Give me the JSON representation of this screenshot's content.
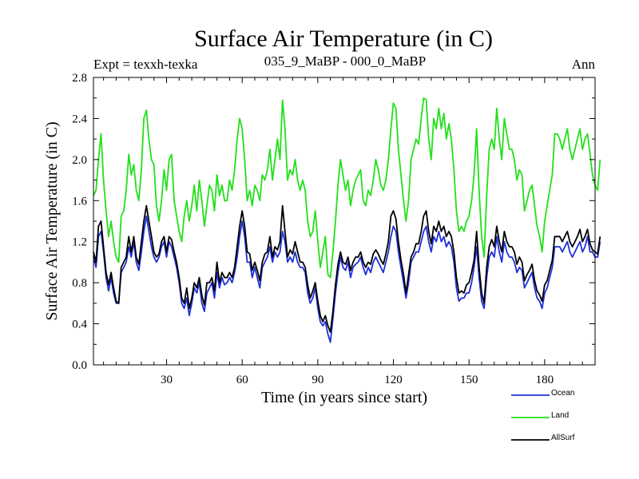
{
  "chart_data": {
    "type": "line",
    "title": "Surface Air Temperature (in C)",
    "left_note": "Expt = texxh-texka",
    "center_note": "035_9_MaBP - 000_0_MaBP",
    "right_note": "Ann",
    "xlabel": "Time (in years since start)",
    "ylabel": "Surface Air Temperature (in C)",
    "xlim": [
      1,
      200
    ],
    "ylim": [
      0.0,
      2.8
    ],
    "xticks": [
      30,
      60,
      90,
      120,
      150,
      180
    ],
    "xtick_labels": [
      "30",
      "60",
      "90",
      "120",
      "150",
      "180"
    ],
    "yticks": [
      0.0,
      0.4,
      0.8,
      1.2,
      1.6,
      2.0,
      2.4,
      2.8
    ],
    "ytick_labels": [
      "0.0",
      "0.4",
      "0.8",
      "1.2",
      "1.6",
      "2.0",
      "2.4",
      "2.8"
    ],
    "legend_position": "bottom-right, below plot",
    "series": [
      {
        "name": "Ocean",
        "color": "#1f2fd8",
        "values": [
          1.05,
          0.95,
          1.25,
          1.3,
          1.1,
          0.85,
          0.72,
          0.85,
          0.7,
          0.6,
          0.6,
          0.9,
          0.95,
          1.0,
          1.15,
          1.05,
          1.2,
          1.0,
          0.92,
          1.1,
          1.3,
          1.45,
          1.3,
          1.15,
          1.05,
          1.0,
          1.05,
          1.15,
          1.2,
          1.05,
          1.2,
          1.15,
          1.05,
          0.95,
          0.8,
          0.6,
          0.55,
          0.65,
          0.48,
          0.6,
          0.75,
          0.7,
          0.8,
          0.6,
          0.52,
          0.7,
          0.75,
          0.8,
          0.65,
          0.9,
          0.75,
          0.85,
          0.78,
          0.8,
          0.85,
          0.8,
          0.9,
          1.05,
          1.25,
          1.4,
          1.25,
          1.0,
          1.0,
          0.85,
          0.95,
          0.85,
          0.75,
          0.95,
          1.0,
          1.05,
          1.15,
          1.0,
          1.1,
          1.05,
          1.1,
          1.3,
          1.2,
          1.0,
          1.05,
          1.0,
          1.1,
          1.0,
          0.95,
          0.95,
          0.9,
          0.7,
          0.6,
          0.65,
          0.75,
          0.55,
          0.42,
          0.38,
          0.42,
          0.3,
          0.22,
          0.45,
          0.7,
          0.9,
          1.05,
          0.95,
          0.92,
          1.0,
          0.85,
          0.95,
          0.98,
          1.0,
          1.05,
          0.95,
          0.88,
          0.95,
          0.9,
          1.0,
          1.05,
          1.0,
          0.95,
          0.9,
          1.0,
          1.1,
          1.25,
          1.35,
          1.3,
          1.1,
          0.95,
          0.8,
          0.65,
          0.8,
          1.0,
          1.05,
          1.1,
          1.1,
          1.2,
          1.3,
          1.35,
          1.2,
          1.1,
          1.25,
          1.2,
          1.3,
          1.2,
          1.25,
          1.15,
          1.2,
          1.15,
          1.0,
          0.75,
          0.62,
          0.65,
          0.65,
          0.7,
          0.7,
          0.8,
          0.95,
          1.15,
          0.85,
          0.62,
          0.55,
          0.85,
          1.05,
          1.1,
          1.05,
          1.25,
          1.1,
          1.0,
          1.2,
          1.1,
          1.05,
          1.05,
          1.0,
          0.9,
          0.95,
          0.92,
          0.75,
          0.8,
          0.85,
          0.9,
          0.75,
          0.65,
          0.62,
          0.55,
          0.7,
          0.75,
          0.85,
          0.95,
          1.15,
          1.15,
          1.15,
          1.1,
          1.15,
          1.2,
          1.1,
          1.05,
          1.1,
          1.15,
          1.2,
          1.1,
          1.15,
          1.25,
          1.1,
          1.1,
          1.05,
          1.05,
          1.2
        ]
      },
      {
        "name": "Land",
        "color": "#22e01a",
        "values": [
          1.65,
          1.7,
          2.0,
          2.25,
          1.8,
          1.5,
          1.25,
          1.4,
          1.2,
          1.05,
          1.0,
          1.45,
          1.5,
          1.7,
          2.05,
          1.85,
          1.95,
          1.7,
          1.6,
          1.9,
          2.4,
          2.48,
          2.2,
          2.0,
          1.95,
          1.55,
          1.4,
          1.6,
          1.9,
          1.7,
          2.0,
          2.05,
          1.6,
          1.45,
          1.3,
          1.2,
          1.45,
          1.6,
          1.4,
          1.55,
          1.75,
          1.5,
          1.8,
          1.6,
          1.35,
          1.55,
          1.75,
          1.7,
          1.5,
          1.85,
          1.65,
          1.75,
          1.6,
          1.6,
          1.8,
          1.7,
          1.9,
          2.2,
          2.4,
          2.3,
          2.0,
          1.6,
          1.7,
          1.55,
          1.75,
          1.7,
          1.6,
          1.85,
          1.8,
          1.9,
          2.1,
          1.8,
          2.0,
          2.2,
          2.0,
          2.58,
          2.3,
          1.8,
          1.9,
          1.85,
          2.0,
          1.8,
          1.7,
          1.8,
          1.7,
          1.4,
          1.25,
          1.3,
          1.5,
          1.2,
          0.95,
          1.1,
          1.25,
          0.88,
          0.85,
          1.1,
          1.4,
          1.75,
          2.0,
          1.85,
          1.7,
          1.8,
          1.55,
          1.7,
          1.8,
          1.85,
          1.9,
          1.6,
          1.55,
          1.7,
          1.65,
          1.8,
          2.0,
          1.9,
          1.75,
          1.7,
          1.8,
          2.0,
          2.3,
          2.55,
          2.5,
          2.1,
          1.85,
          1.6,
          1.4,
          1.6,
          2.0,
          2.1,
          2.2,
          2.15,
          2.4,
          2.6,
          2.58,
          2.2,
          2.0,
          2.4,
          2.3,
          2.5,
          2.3,
          2.45,
          2.2,
          2.35,
          2.2,
          1.9,
          1.5,
          1.3,
          1.35,
          1.3,
          1.4,
          1.45,
          1.6,
          1.85,
          2.3,
          1.7,
          1.25,
          1.05,
          1.65,
          2.1,
          2.2,
          2.1,
          2.5,
          2.2,
          2.0,
          2.4,
          2.25,
          2.1,
          2.1,
          2.0,
          1.8,
          1.9,
          1.85,
          1.5,
          1.6,
          1.7,
          1.75,
          1.55,
          1.35,
          1.25,
          1.1,
          1.4,
          1.55,
          1.7,
          1.85,
          2.25,
          2.25,
          2.2,
          2.1,
          2.2,
          2.3,
          2.1,
          2.0,
          2.1,
          2.2,
          2.3,
          2.1,
          2.2,
          2.25,
          2.05,
          1.85,
          1.75,
          1.7,
          2.0
        ]
      },
      {
        "name": "AllSurf",
        "color": "#000000",
        "values": [
          1.1,
          1.0,
          1.35,
          1.4,
          1.15,
          0.9,
          0.78,
          0.9,
          0.75,
          0.62,
          0.6,
          0.95,
          1.0,
          1.05,
          1.25,
          1.1,
          1.25,
          1.05,
          0.98,
          1.2,
          1.4,
          1.55,
          1.4,
          1.25,
          1.1,
          1.05,
          1.08,
          1.2,
          1.25,
          1.1,
          1.25,
          1.22,
          1.1,
          1.0,
          0.85,
          0.65,
          0.6,
          0.75,
          0.55,
          0.65,
          0.8,
          0.75,
          0.85,
          0.68,
          0.58,
          0.8,
          0.8,
          0.85,
          0.72,
          1.0,
          0.8,
          0.9,
          0.85,
          0.85,
          0.9,
          0.85,
          0.95,
          1.15,
          1.35,
          1.5,
          1.35,
          1.1,
          1.08,
          0.92,
          1.0,
          0.92,
          0.82,
          1.0,
          1.08,
          1.1,
          1.25,
          1.05,
          1.15,
          1.12,
          1.2,
          1.55,
          1.3,
          1.05,
          1.12,
          1.08,
          1.2,
          1.1,
          1.0,
          1.0,
          0.95,
          0.78,
          0.65,
          0.72,
          0.8,
          0.62,
          0.48,
          0.42,
          0.48,
          0.38,
          0.32,
          0.52,
          0.78,
          0.98,
          1.1,
          1.0,
          0.98,
          1.05,
          0.92,
          1.0,
          1.05,
          1.05,
          1.1,
          1.0,
          0.95,
          1.0,
          0.98,
          1.08,
          1.12,
          1.08,
          1.02,
          0.98,
          1.08,
          1.2,
          1.45,
          1.5,
          1.42,
          1.2,
          1.02,
          0.88,
          0.7,
          0.88,
          1.05,
          1.1,
          1.18,
          1.18,
          1.3,
          1.45,
          1.5,
          1.3,
          1.18,
          1.35,
          1.3,
          1.4,
          1.3,
          1.35,
          1.25,
          1.3,
          1.25,
          1.1,
          0.85,
          0.7,
          0.72,
          0.7,
          0.78,
          0.8,
          0.9,
          1.02,
          1.3,
          0.95,
          0.7,
          0.6,
          0.95,
          1.15,
          1.22,
          1.15,
          1.35,
          1.2,
          1.1,
          1.3,
          1.2,
          1.15,
          1.15,
          1.1,
          0.98,
          1.05,
          1.0,
          0.82,
          0.88,
          0.92,
          0.98,
          0.82,
          0.72,
          0.68,
          0.62,
          0.78,
          0.82,
          0.92,
          1.02,
          1.25,
          1.25,
          1.25,
          1.2,
          1.25,
          1.3,
          1.2,
          1.15,
          1.2,
          1.25,
          1.32,
          1.2,
          1.25,
          1.32,
          1.18,
          1.12,
          1.1,
          1.08,
          1.25
        ]
      }
    ]
  }
}
